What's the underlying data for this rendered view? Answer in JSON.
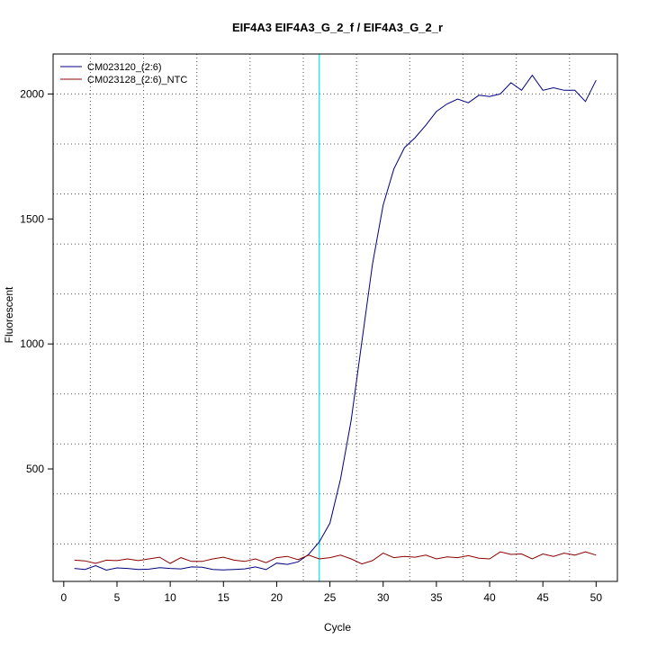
{
  "chart_data": {
    "type": "line",
    "title": "EIF4A3  EIF4A3_G_2_f / EIF4A3_G_2_r",
    "xlabel": "Cycle",
    "ylabel": "Fluorescent",
    "xlim": [
      -1,
      52
    ],
    "ylim": [
      50,
      2160
    ],
    "x_ticks": [
      0,
      5,
      10,
      15,
      20,
      25,
      30,
      35,
      40,
      45,
      50
    ],
    "y_ticks": [
      500,
      1000,
      1500,
      2000
    ],
    "grid": "on",
    "legend_position": "top-left",
    "threshold_cycle": 24,
    "threshold_color": "#00e5ee",
    "series": [
      {
        "name": "CM023120_(2:6)",
        "color": "#000080",
        "x": [
          1,
          2,
          3,
          4,
          5,
          6,
          7,
          8,
          9,
          10,
          11,
          12,
          13,
          14,
          15,
          16,
          17,
          18,
          19,
          20,
          21,
          22,
          23,
          24,
          25,
          26,
          27,
          28,
          29,
          30,
          31,
          32,
          33,
          34,
          35,
          36,
          37,
          38,
          39,
          40,
          41,
          42,
          43,
          44,
          45,
          46,
          47,
          48,
          49,
          50
        ],
        "values": [
          102,
          98,
          113,
          95,
          104,
          102,
          98,
          99,
          105,
          102,
          100,
          108,
          107,
          98,
          96,
          98,
          100,
          108,
          97,
          123,
          118,
          128,
          158,
          208,
          283,
          460,
          695,
          1010,
          1320,
          1555,
          1700,
          1785,
          1825,
          1875,
          1930,
          1960,
          1980,
          1965,
          1995,
          1990,
          2000,
          2045,
          2015,
          2075,
          2015,
          2025,
          2015,
          2015,
          1970,
          2055
        ]
      },
      {
        "name": "CM023128_(2:6)_NTC",
        "color": "#8b0000",
        "x": [
          1,
          2,
          3,
          4,
          5,
          6,
          7,
          8,
          9,
          10,
          11,
          12,
          13,
          14,
          15,
          16,
          17,
          18,
          19,
          20,
          21,
          22,
          23,
          24,
          25,
          26,
          27,
          28,
          29,
          30,
          31,
          32,
          33,
          34,
          35,
          36,
          37,
          38,
          39,
          40,
          41,
          42,
          43,
          44,
          45,
          46,
          47,
          48,
          49,
          50
        ],
        "values": [
          135,
          132,
          122,
          135,
          133,
          140,
          133,
          140,
          147,
          122,
          145,
          130,
          130,
          140,
          147,
          135,
          130,
          140,
          125,
          145,
          150,
          137,
          155,
          140,
          145,
          155,
          140,
          120,
          133,
          163,
          145,
          150,
          147,
          155,
          140,
          148,
          145,
          153,
          143,
          140,
          168,
          158,
          160,
          140,
          160,
          150,
          163,
          155,
          168,
          155
        ]
      }
    ]
  }
}
